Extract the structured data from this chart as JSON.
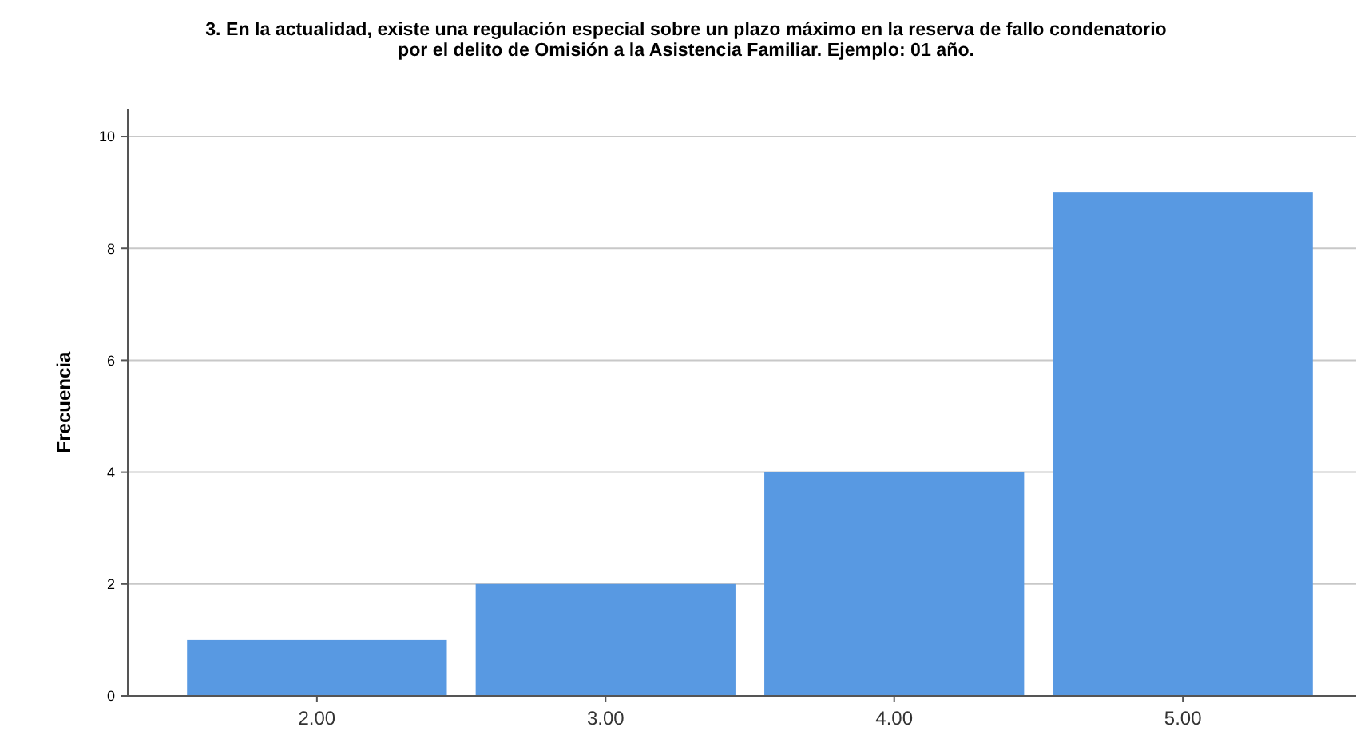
{
  "chart_data": {
    "type": "bar",
    "title": "3. En la actualidad, existe una regulación especial sobre un plazo máximo en la reserva de fallo condenatorio\npor el delito de Omisión a la Asistencia Familiar. Ejemplo: 01 año.",
    "ylabel": "Frecuencia",
    "categories": [
      "2.00",
      "3.00",
      "4.00",
      "5.00"
    ],
    "values": [
      1,
      2,
      4,
      9
    ],
    "color": "#5899e2",
    "ylim": [
      0,
      10.5
    ],
    "yticks": [
      0,
      2,
      4,
      6,
      8,
      10
    ],
    "grid": "y"
  }
}
